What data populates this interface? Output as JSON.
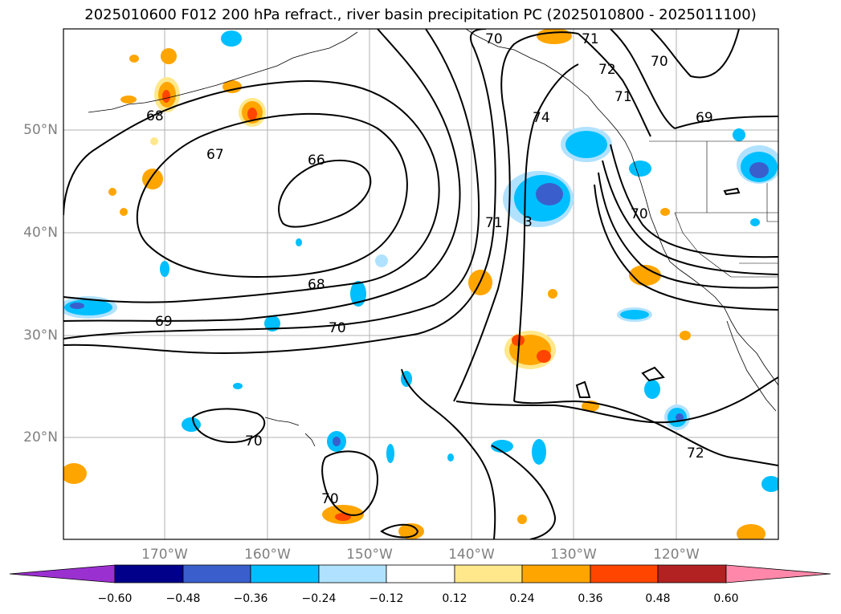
{
  "title": "2025010600 F012 200 hPa refract., river basin precipitation PC (2025010800 - 2025011100)",
  "lat_labels": [
    "50°N",
    "40°N",
    "30°N",
    "20°N"
  ],
  "lon_labels": [
    "170°W",
    "160°W",
    "150°W",
    "140°W",
    "130°W",
    "120°W"
  ],
  "contour_labels": [
    "68",
    "67",
    "66",
    "68",
    "69",
    "70",
    "70",
    "71",
    "74",
    "72",
    "71",
    "70",
    "69",
    "70",
    "71",
    "3",
    "72",
    "70",
    "70"
  ],
  "colorbar": {
    "ticks": [
      "−0.60",
      "−0.48",
      "−0.36",
      "−0.24",
      "−0.12",
      "0.12",
      "0.24",
      "0.36",
      "0.48",
      "0.60"
    ],
    "colors": [
      "#9b30d0",
      "#00008b",
      "#3a5fcd",
      "#00bfff",
      "#b0e2ff",
      "#ffffff",
      "#ffe88c",
      "#ffa500",
      "#ff4500",
      "#b22222",
      "#ff88aa"
    ]
  }
}
